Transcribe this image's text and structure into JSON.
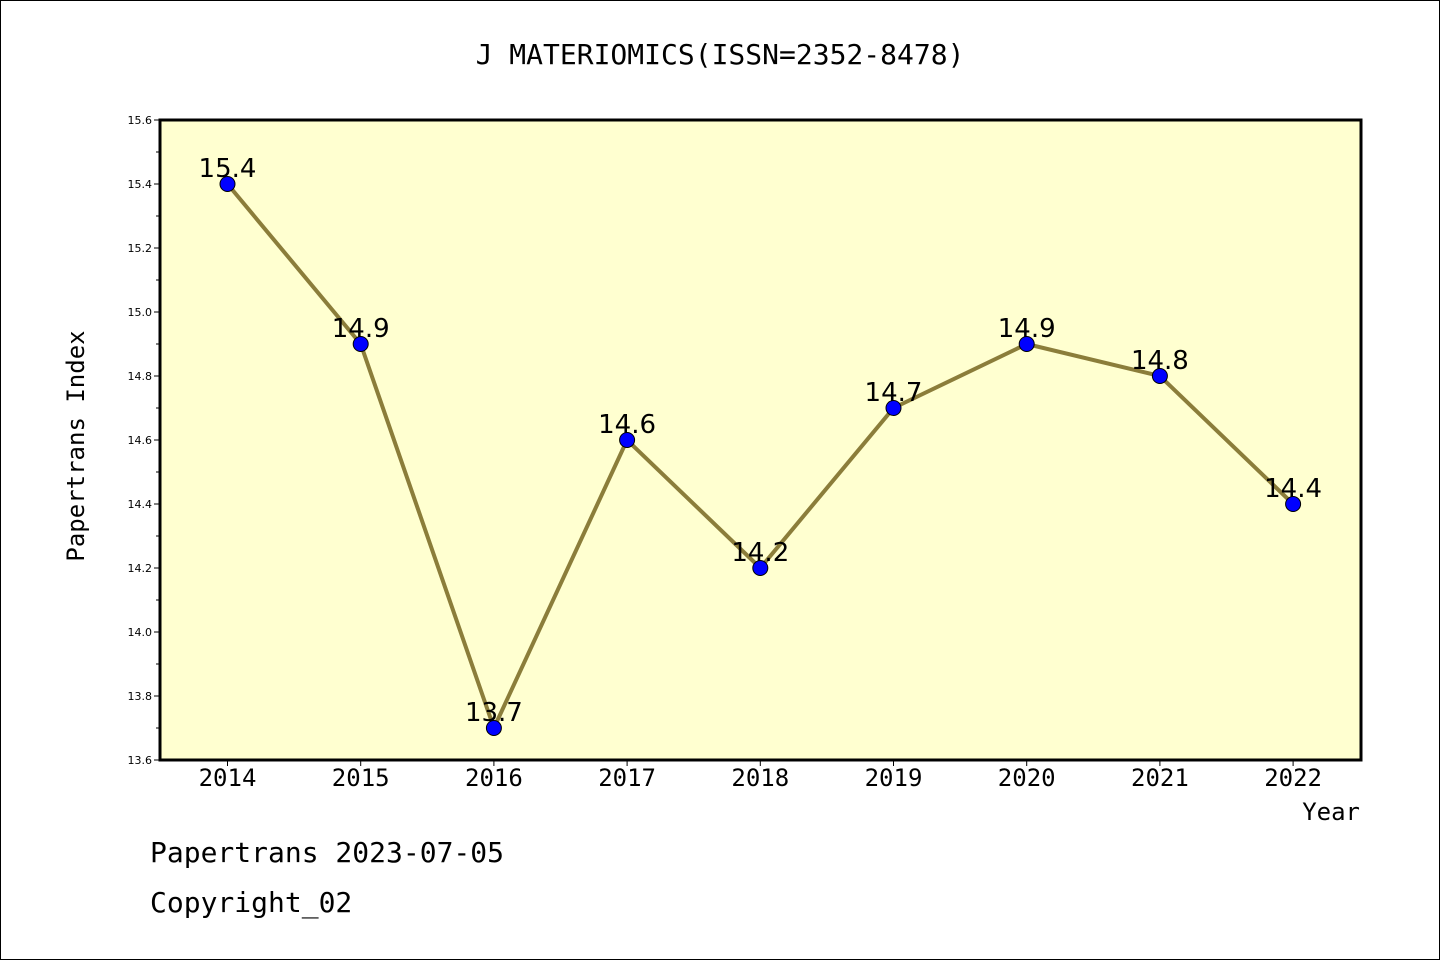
{
  "chart_data": {
    "type": "line",
    "title": "J MATERIOMICS(ISSN=2352-8478)",
    "xlabel": "Year",
    "ylabel": "Papertrans Index",
    "categories": [
      "2014",
      "2015",
      "2016",
      "2017",
      "2018",
      "2019",
      "2020",
      "2021",
      "2022"
    ],
    "series": [
      {
        "values": [
          15.4,
          14.9,
          13.7,
          14.6,
          14.2,
          14.7,
          14.9,
          14.8,
          14.4
        ]
      }
    ],
    "data_labels": [
      "15.4",
      "14.9",
      "13.7",
      "14.6",
      "14.2",
      "14.7",
      "14.9",
      "14.8",
      "14.4"
    ],
    "ylim": [
      13.6,
      15.6
    ],
    "yticks": [
      "13.6",
      "13.8",
      "14.0",
      "14.2",
      "14.4",
      "14.6",
      "14.8",
      "15.0",
      "15.2",
      "15.4",
      "15.6"
    ],
    "grid": false,
    "colors": {
      "plot_background": "#ffffd0",
      "line": "#8b7d3a",
      "marker": "#0000ff"
    }
  },
  "footer": {
    "source": "Papertrans 2023-07-05",
    "copyright": "Copyright_02"
  }
}
